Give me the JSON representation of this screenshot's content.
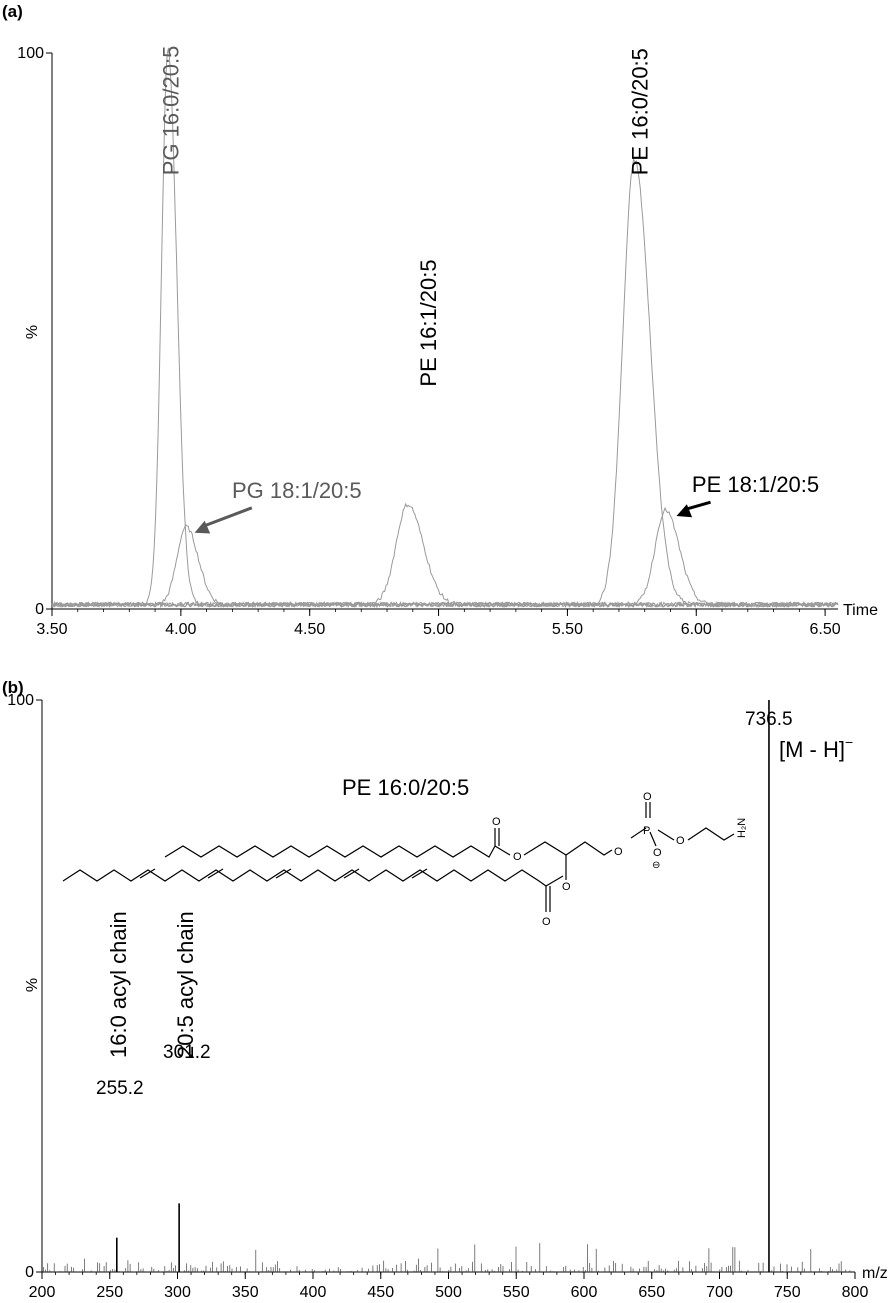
{
  "panels": [
    {
      "label": "(a)",
      "chart_data": {
        "type": "line",
        "x_axis_title": "Time",
        "y_axis_title": "%",
        "xlim": [
          3.5,
          6.55
        ],
        "ylim": [
          0,
          100
        ],
        "x_ticks": [
          "3.50",
          "4.00",
          "4.50",
          "5.00",
          "5.50",
          "6.00",
          "6.50"
        ],
        "y_ticks": [
          "0",
          "100"
        ],
        "series": [
          {
            "color": "#9a9a9a",
            "peaks": [
              {
                "center": 3.95,
                "height": 100,
                "width": 0.025
              }
            ]
          },
          {
            "color": "#9a9a9a",
            "peaks": [
              {
                "center": 4.02,
                "height": 14,
                "width": 0.035
              }
            ]
          },
          {
            "color": "#9a9a9a",
            "peaks": [
              {
                "center": 4.88,
                "height": 18,
                "width": 0.045
              }
            ]
          },
          {
            "color": "#9a9a9a",
            "peaks": [
              {
                "center": 5.76,
                "height": 80,
                "width": 0.045
              }
            ]
          },
          {
            "color": "#9a9a9a",
            "peaks": [
              {
                "center": 5.88,
                "height": 17,
                "width": 0.04
              }
            ]
          }
        ],
        "annotations": [
          {
            "text": "PG 16:0/20:5",
            "x": 3.99,
            "y": 78,
            "rotated": true,
            "color": "#5a5a5a"
          },
          {
            "text": "PG 18:1/20:5",
            "x": 4.45,
            "y": 20,
            "rotated": false,
            "color": "#5a5a5a",
            "arrow_to": [
              4.03,
              13
            ]
          },
          {
            "text": "PE 16:1/20:5",
            "x": 4.99,
            "y": 40,
            "rotated": true,
            "color": "#000000"
          },
          {
            "text": "PE 16:0/20:5",
            "x": 5.81,
            "y": 78,
            "rotated": true,
            "color": "#000000"
          },
          {
            "text": "PE 18:1/20:5",
            "x": 6.23,
            "y": 21,
            "rotated": false,
            "color": "#000000",
            "arrow_to": [
              5.9,
              16
            ]
          }
        ]
      }
    },
    {
      "label": "(b)",
      "chart_data": {
        "type": "bar",
        "x_axis_title": "m/z",
        "y_axis_title": "%",
        "xlim": [
          200,
          800
        ],
        "ylim": [
          0,
          100
        ],
        "x_ticks": [
          "200",
          "250",
          "300",
          "350",
          "400",
          "450",
          "500",
          "550",
          "600",
          "650",
          "700",
          "750",
          "800"
        ],
        "y_ticks": [
          "0",
          "100"
        ],
        "major_peaks": [
          {
            "mz": 255.2,
            "intensity": 6,
            "label": "255.2"
          },
          {
            "mz": 301.2,
            "intensity": 12,
            "label": "301.2"
          },
          {
            "mz": 736.5,
            "intensity": 100,
            "label": "736.5"
          }
        ],
        "annotations": {
          "ion": "[M - H]",
          "ion_superscript": "−",
          "compound": "PE 16:0/20:5",
          "chain_160": "16:0 acyl chain",
          "chain_205": "20:5 acyl chain"
        },
        "structure_atoms": [
          "O",
          "O",
          "O",
          "P",
          "O",
          "O",
          "O",
          "⊖",
          "H₂N",
          "O",
          "O"
        ]
      }
    }
  ]
}
